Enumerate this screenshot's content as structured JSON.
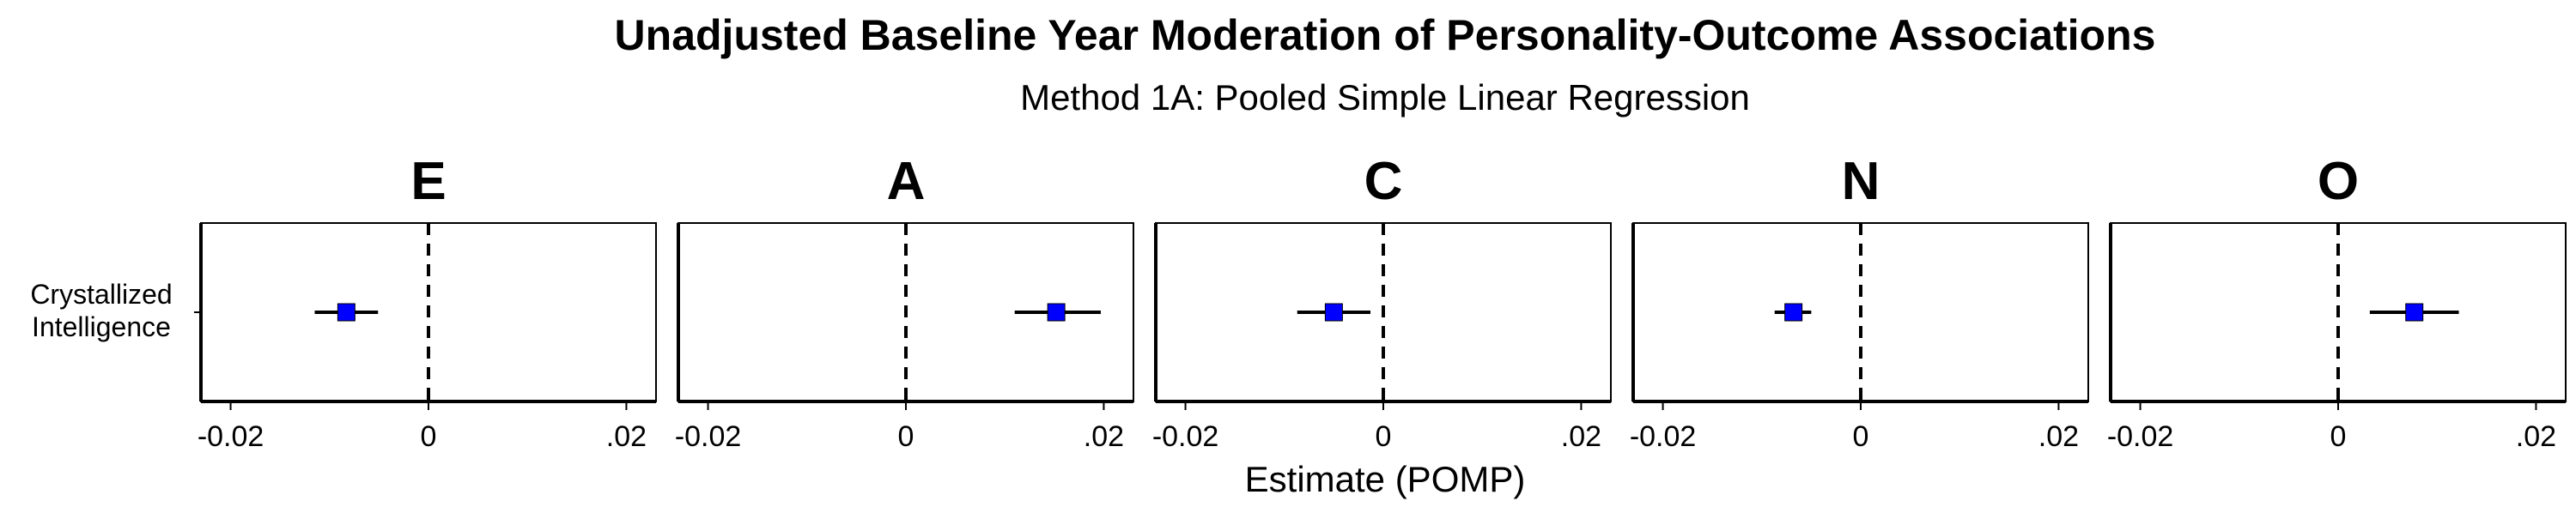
{
  "chart_data": {
    "type": "scatter",
    "title": "Unadjusted Baseline Year Moderation of Personality-Outcome Associations",
    "subtitle": "Method 1A: Pooled Simple Linear Regression",
    "xlabel": "Estimate (POMP)",
    "ylabel": "",
    "xlim": [
      -0.023,
      0.023
    ],
    "x_ticks": [
      -0.02,
      0,
      0.02
    ],
    "x_tick_labels": [
      "-0.02",
      "0",
      ".02"
    ],
    "reference_line": 0,
    "grid": false,
    "y_categories": [
      "Crystallized\nIntelligence"
    ],
    "panels": [
      {
        "label": "E",
        "estimate": -0.0083,
        "ci_low": -0.0115,
        "ci_high": -0.0051
      },
      {
        "label": "A",
        "estimate": 0.0152,
        "ci_low": 0.011,
        "ci_high": 0.0197
      },
      {
        "label": "C",
        "estimate": -0.005,
        "ci_low": -0.0087,
        "ci_high": -0.0013
      },
      {
        "label": "N",
        "estimate": -0.0068,
        "ci_low": -0.0087,
        "ci_high": -0.005
      },
      {
        "label": "O",
        "estimate": 0.0077,
        "ci_low": 0.0032,
        "ci_high": 0.0122
      }
    ],
    "point_color": "#0000ff"
  }
}
